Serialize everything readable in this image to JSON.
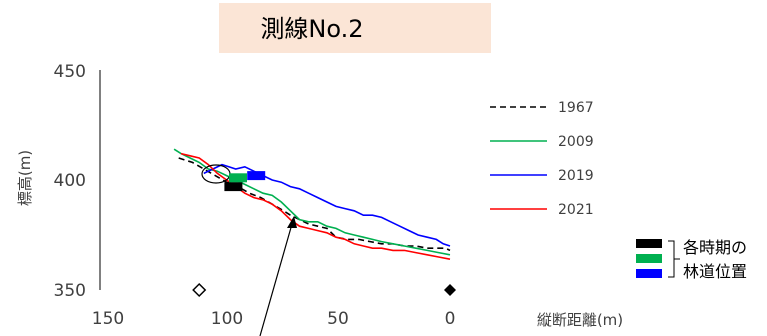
{
  "chart_data": {
    "type": "line",
    "title": "測線No.2",
    "xlabel": "縦断距離(m)",
    "ylabel": "標高(m)",
    "xlim": [
      150,
      0
    ],
    "ylim": [
      350,
      450
    ],
    "x_ticks": [
      "150",
      "100",
      "50",
      "0"
    ],
    "y_ticks": [
      "450",
      "400",
      "350"
    ],
    "grid": false,
    "legend_position": "right",
    "series": [
      {
        "name": "1967",
        "color": "#000000",
        "style": "dashed",
        "x": [
          119,
          113,
          108,
          103,
          98,
          93,
          88,
          83,
          78,
          73,
          70,
          66,
          62,
          58,
          54,
          50,
          45,
          40,
          35,
          30,
          25,
          20,
          15,
          10,
          5,
          2,
          0
        ],
        "y": [
          410,
          408,
          405,
          402,
          399,
          397,
          394,
          392,
          389,
          386,
          384,
          382,
          380,
          379,
          378,
          374,
          373,
          373,
          372,
          371,
          371,
          370,
          370,
          369,
          369,
          369,
          368
        ]
      },
      {
        "name": "2009",
        "color": "#00b050",
        "style": "solid",
        "x": [
          121,
          118,
          114,
          110,
          106,
          102,
          98,
          94,
          90,
          86,
          82,
          78,
          74,
          70,
          66,
          62,
          58,
          54,
          50,
          46,
          42,
          38,
          34,
          30,
          25,
          20,
          15,
          10,
          5,
          0
        ],
        "y": [
          414,
          412,
          410,
          408,
          405,
          404,
          402,
          400,
          398,
          396,
          394,
          393,
          390,
          386,
          382,
          381,
          381,
          379,
          378,
          376,
          375,
          374,
          373,
          372,
          371,
          370,
          369,
          368,
          367,
          366
        ]
      },
      {
        "name": "2019",
        "color": "#0000ff",
        "style": "solid",
        "x": [
          108,
          104,
          100,
          97,
          94,
          90,
          86,
          82,
          78,
          74,
          70,
          66,
          62,
          58,
          54,
          50,
          46,
          42,
          38,
          34,
          30,
          26,
          22,
          18,
          14,
          10,
          6,
          3,
          0
        ],
        "y": [
          403,
          405,
          407,
          406,
          405,
          406,
          404,
          402,
          400,
          399,
          397,
          396,
          394,
          392,
          390,
          388,
          387,
          386,
          384,
          384,
          383,
          381,
          379,
          377,
          375,
          374,
          373,
          371,
          370
        ]
      },
      {
        "name": "2021",
        "color": "#ff0000",
        "style": "solid",
        "x": [
          118,
          114,
          110,
          106,
          102,
          98,
          94,
          90,
          86,
          82,
          78,
          74,
          70,
          66,
          62,
          58,
          54,
          50,
          46,
          42,
          38,
          34,
          30,
          25,
          20,
          15,
          10,
          5,
          0
        ],
        "y": [
          412,
          411,
          410,
          407,
          403,
          400,
          397,
          394,
          392,
          391,
          389,
          386,
          382,
          379,
          378,
          377,
          376,
          374,
          373,
          371,
          370,
          369,
          369,
          368,
          368,
          367,
          366,
          365,
          364
        ]
      }
    ],
    "forest_road_positions": [
      {
        "color": "#000000",
        "x": 95,
        "y": 397
      },
      {
        "color": "#00b050",
        "x": 93,
        "y": 401
      },
      {
        "color": "#0000ff",
        "x": 85,
        "y": 402
      }
    ],
    "forest_road_label": [
      "各時期の",
      "林道位置"
    ],
    "markers": [
      {
        "symbol": "open-diamond",
        "x": 110,
        "y": 350
      },
      {
        "symbol": "filled-diamond",
        "x": 0,
        "y": 350
      }
    ]
  }
}
